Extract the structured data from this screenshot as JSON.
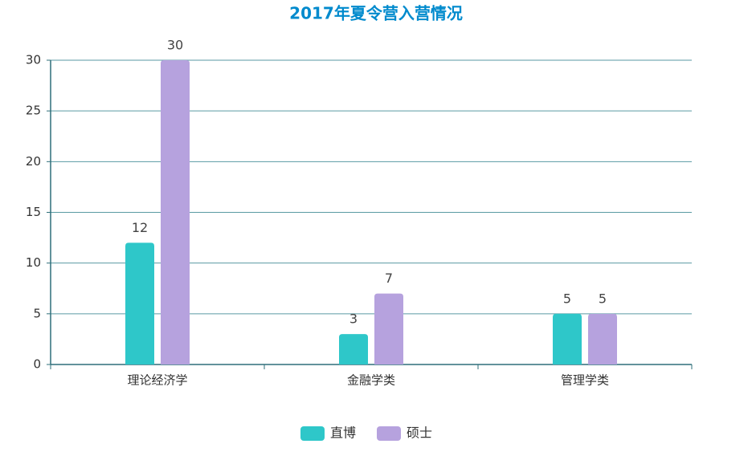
{
  "chart_data": {
    "type": "bar",
    "title": "2017年夏令营入营情况",
    "categories": [
      "理论经济学",
      "金融学类",
      "管理学类"
    ],
    "series": [
      {
        "name": "直博",
        "color": "#2ec7c9",
        "values": [
          12,
          3,
          5
        ]
      },
      {
        "name": "硕士",
        "color": "#b6a2de",
        "values": [
          30,
          7,
          5
        ]
      }
    ],
    "ylim": [
      0,
      30
    ],
    "yticks": [
      0,
      5,
      10,
      15,
      20,
      25,
      30
    ],
    "grid": true,
    "legend": "bottom"
  }
}
